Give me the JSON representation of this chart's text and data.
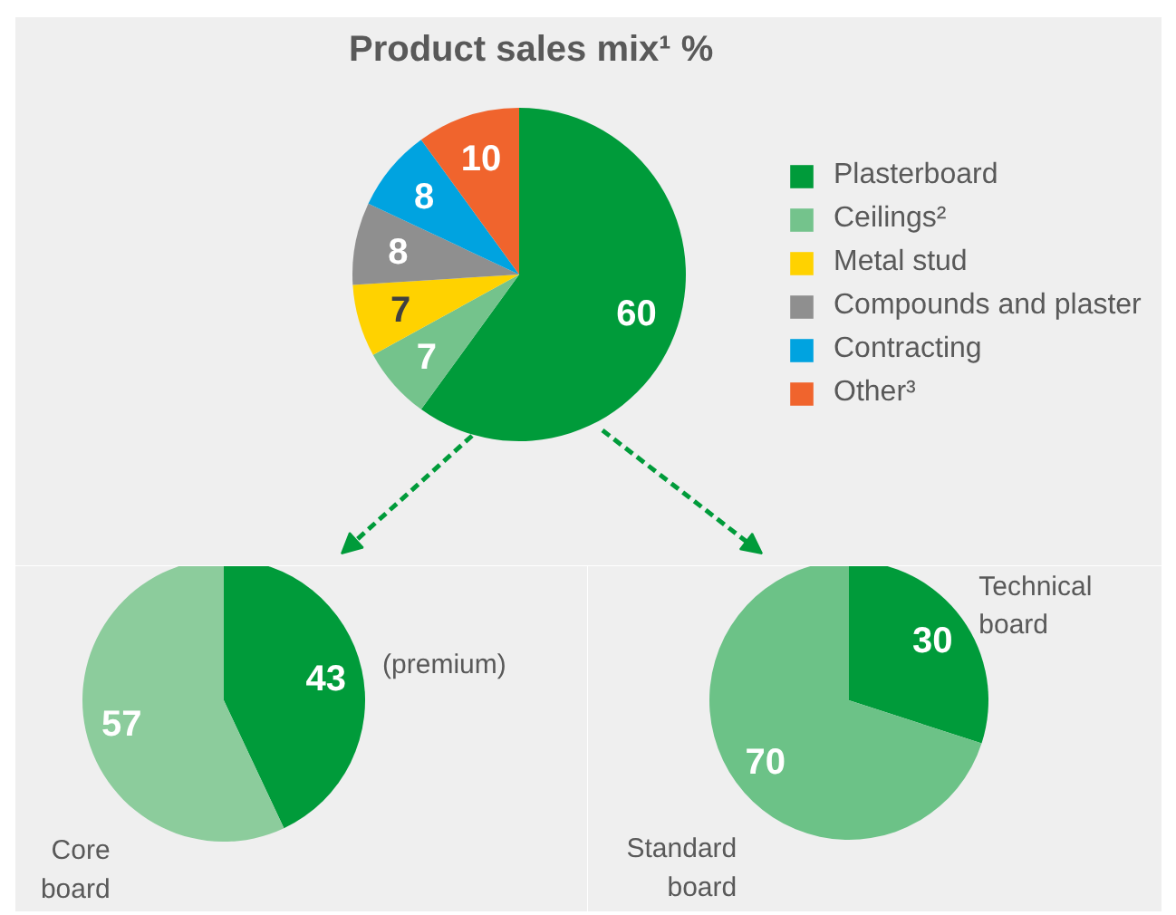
{
  "chart_data": [
    {
      "type": "pie",
      "title": "Product sales mix¹ %",
      "categories": [
        "Plasterboard",
        "Ceilings²",
        "Metal stud",
        "Compounds and plaster",
        "Contracting",
        "Other³"
      ],
      "values": [
        60,
        7,
        7,
        8,
        8,
        10
      ],
      "colors": [
        "#009b3a",
        "#74c38c",
        "#ffd200",
        "#8f8f8f",
        "#00a3e0",
        "#f0642d"
      ],
      "legend": "right",
      "data_labels": true
    },
    {
      "type": "pie",
      "categories": [
        "(premium)",
        "Core board"
      ],
      "values": [
        43,
        57
      ],
      "colors": [
        "#009b3a",
        "#8ccc9c"
      ],
      "data_labels": true
    },
    {
      "type": "pie",
      "categories": [
        "Technical board",
        "Standard board"
      ],
      "values": [
        30,
        70
      ],
      "colors": [
        "#009b3a",
        "#6cc287"
      ],
      "data_labels": true
    }
  ]
}
